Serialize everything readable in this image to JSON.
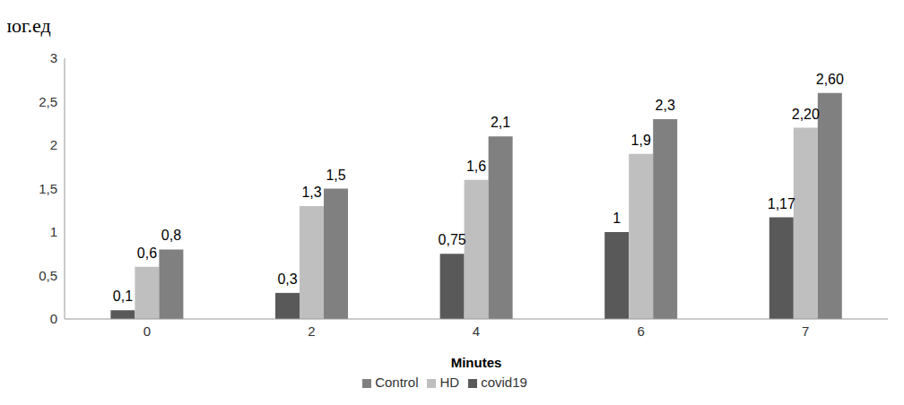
{
  "chart_data": {
    "type": "bar",
    "y_label": "лог.ед",
    "x_label": "Minutes",
    "categories": [
      "0",
      "2",
      "4",
      "6",
      "7"
    ],
    "series": [
      {
        "name": "covid19",
        "color": "#595959",
        "values": [
          0.1,
          0.3,
          0.75,
          1,
          1.17
        ],
        "value_labels": [
          "0,1",
          "0,3",
          "0,75",
          "1",
          "1,17"
        ]
      },
      {
        "name": "HD",
        "color": "#bfbfbf",
        "values": [
          0.6,
          1.3,
          1.6,
          1.9,
          2.2
        ],
        "value_labels": [
          "0,6",
          "1,3",
          "1,6",
          "1,9",
          "2,20"
        ]
      },
      {
        "name": "Control",
        "color": "#808080",
        "values": [
          0.8,
          1.5,
          2.1,
          2.3,
          2.6
        ],
        "value_labels": [
          "0,8",
          "1,5",
          "2,1",
          "2,3",
          "2,60"
        ]
      }
    ],
    "ylim": [
      0,
      3
    ],
    "yticks": [
      0,
      {
        "value": 0.5,
        "label": "0,5"
      },
      1,
      {
        "value": 1.5,
        "label": "1,5"
      },
      2,
      {
        "value": 2.5,
        "label": "2,5"
      },
      3
    ],
    "grid": false,
    "legend": "bottom",
    "data_labels": true
  }
}
